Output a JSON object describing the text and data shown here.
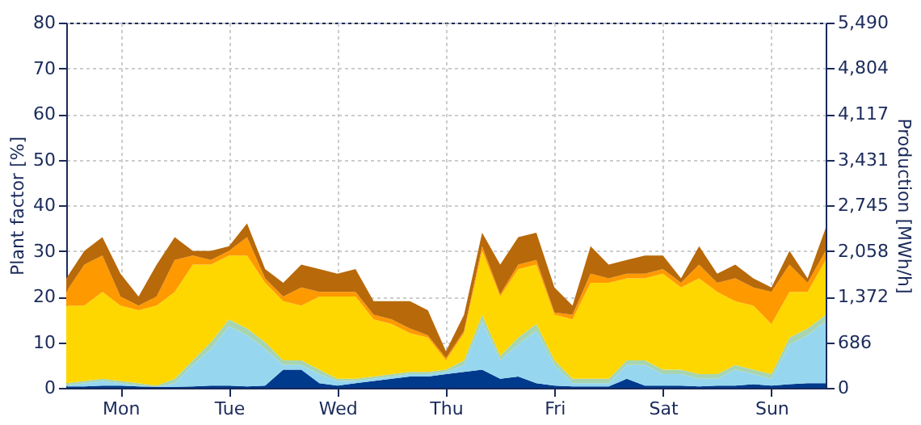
{
  "chart_data": {
    "type": "area",
    "stacked": true,
    "legend": false,
    "grid": true,
    "ylabel": "Plant factor [%]",
    "y2label": "Production [MWh/h]",
    "categories": [
      null,
      null,
      null,
      "Mon",
      null,
      null,
      null,
      null,
      null,
      "Tue",
      null,
      null,
      null,
      null,
      null,
      "Wed",
      null,
      null,
      null,
      null,
      null,
      "Thu",
      null,
      null,
      null,
      null,
      null,
      "Fri",
      null,
      null,
      null,
      null,
      null,
      "Sat",
      null,
      null,
      null,
      null,
      null,
      "Sun",
      null,
      null,
      null
    ],
    "ylim": [
      0,
      80
    ],
    "yticks": [
      0,
      10,
      20,
      30,
      40,
      50,
      60,
      70,
      80
    ],
    "y2lim": [
      0,
      5490
    ],
    "y2ticks": [
      {
        "value": 0,
        "label": "0"
      },
      {
        "value": 686,
        "label": "686"
      },
      {
        "value": 1372,
        "label": "1,372"
      },
      {
        "value": 2058,
        "label": "2,058"
      },
      {
        "value": 2745,
        "label": "2,745"
      },
      {
        "value": 3431,
        "label": "3,431"
      },
      {
        "value": 4117,
        "label": "4,117"
      },
      {
        "value": 4804,
        "label": "4,804"
      },
      {
        "value": 5490,
        "label": "5,490"
      }
    ],
    "series": [
      {
        "color": "#003a8c",
        "values": [
          0.3,
          0.3,
          0.5,
          0.5,
          0.3,
          0.2,
          0.2,
          0.3,
          0.5,
          0.5,
          0.3,
          0.5,
          4,
          4,
          1,
          0.5,
          1,
          1.5,
          2,
          2.5,
          2.5,
          3,
          3.5,
          4,
          2,
          2.5,
          1,
          0.5,
          0.3,
          0.3,
          0.3,
          2,
          0.5,
          0.5,
          0.5,
          0.3,
          0.5,
          0.5,
          0.8,
          0.5,
          0.8,
          1,
          1
        ]
      },
      {
        "color": "#96d7ef",
        "values": [
          0.2,
          0.7,
          1,
          0.5,
          0.2,
          0,
          0.8,
          4.7,
          8,
          13,
          11.2,
          8,
          1,
          1,
          2,
          1,
          0.5,
          0.5,
          0.5,
          0.5,
          0.5,
          0.5,
          1.5,
          10.5,
          4,
          7,
          11.5,
          4.5,
          0.7,
          0.7,
          0.7,
          3,
          4.5,
          2.5,
          2.5,
          1.7,
          1.5,
          3.5,
          2.2,
          1.5,
          8.7,
          10.5,
          13.5
        ]
      },
      {
        "color": "#a8d5b0",
        "values": [
          0.5,
          0.5,
          0.5,
          0.5,
          0.5,
          0.3,
          1,
          1,
          1.5,
          1.5,
          1.5,
          1.5,
          1,
          1,
          1,
          0.5,
          0.5,
          0.5,
          0.5,
          0.5,
          0.5,
          0.5,
          1,
          1.5,
          1,
          1.5,
          1.5,
          1,
          1,
          1,
          1,
          1,
          1,
          1,
          1,
          1,
          1,
          1,
          1,
          1,
          1.5,
          1.5,
          1.5
        ]
      },
      {
        "color": "#ffd700",
        "values": [
          17,
          16.5,
          19,
          16.5,
          16,
          17.5,
          19,
          21,
          17,
          14,
          16,
          13,
          13,
          12,
          16,
          18,
          18,
          12.5,
          11,
          8.5,
          7.5,
          2,
          6,
          14,
          13,
          15,
          13,
          10,
          13,
          21,
          21,
          18,
          18,
          21,
          18,
          21,
          18,
          14,
          14,
          11,
          10,
          8,
          12
        ]
      },
      {
        "color": "#ff9900",
        "values": [
          3,
          9,
          8,
          2,
          1,
          2,
          7,
          2,
          1,
          1,
          4,
          1,
          1,
          4,
          1,
          1,
          1,
          1,
          1,
          1,
          0.5,
          0.5,
          0.5,
          1,
          0.5,
          1,
          1,
          0.5,
          1,
          2,
          1,
          1,
          1,
          1,
          1,
          3,
          2,
          5,
          4,
          7,
          6,
          2,
          2
        ]
      },
      {
        "color": "#b8690a",
        "values": [
          3,
          3,
          4,
          5,
          2,
          7,
          5,
          1,
          2,
          1,
          3,
          2,
          3,
          5,
          5,
          4,
          5,
          3,
          4,
          6,
          5.5,
          1.5,
          3.5,
          3,
          6.5,
          6,
          6,
          5.5,
          2,
          6,
          3,
          3,
          4,
          3,
          1,
          4,
          2,
          3,
          2,
          1,
          3,
          1,
          5
        ]
      }
    ]
  }
}
